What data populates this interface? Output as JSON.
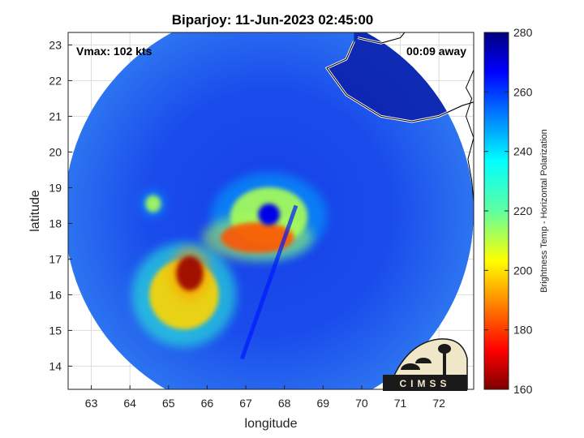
{
  "chart_data": {
    "type": "heatmap",
    "title": "Biparjoy: 11-Jun-2023 02:45:00",
    "xlabel": "longitude",
    "ylabel": "latitude",
    "xlim": [
      62.4,
      72.9
    ],
    "ylim": [
      13.35,
      23.35
    ],
    "xticks": [
      "63",
      "64",
      "65",
      "66",
      "67",
      "68",
      "69",
      "70",
      "71",
      "72"
    ],
    "yticks": [
      "14",
      "15",
      "16",
      "17",
      "18",
      "19",
      "20",
      "21",
      "22",
      "23"
    ],
    "grid": true,
    "colorbar": {
      "label": "Brightness Temp - Horizontal Polarization",
      "range": [
        160,
        280
      ],
      "ticks": [
        "160",
        "180",
        "200",
        "220",
        "240",
        "260",
        "280"
      ],
      "colormap": "jet"
    },
    "swath": {
      "center_lon": 67.6,
      "center_lat": 18.3,
      "radius_deg": 5.3
    },
    "storm_center": {
      "lon": 67.6,
      "lat": 18.25
    },
    "annotations": {
      "vmax": "Vmax: 102 kts",
      "time_offset": "00:09 away"
    },
    "features": [
      {
        "name": "eyewall",
        "lon": 67.6,
        "lat": 18.2,
        "tb": 215
      },
      {
        "name": "rainband-south",
        "lon": 67.3,
        "lat": 17.6,
        "tb": 185
      },
      {
        "name": "cold-core",
        "lon": 65.55,
        "lat": 16.6,
        "tb": 163
      },
      {
        "name": "spiral-band-west",
        "lon": 65.4,
        "lat": 16.0,
        "tb": 200
      },
      {
        "name": "convective-cell",
        "lon": 64.6,
        "lat": 18.55,
        "tb": 215
      }
    ]
  },
  "logo": {
    "text": "CIMSS"
  }
}
